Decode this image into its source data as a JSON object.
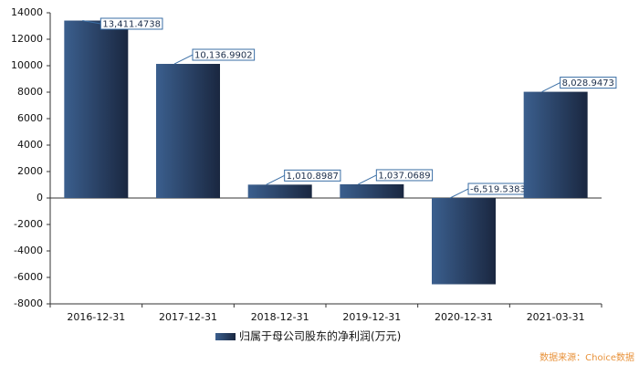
{
  "chart_data": {
    "type": "bar",
    "categories": [
      "2016-12-31",
      "2017-12-31",
      "2018-12-31",
      "2019-12-31",
      "2020-12-31",
      "2021-03-31"
    ],
    "series": [
      {
        "name": "归属于母公司股东的净利润(万元)",
        "color": "#3b5f8e",
        "values": [
          13411.4738,
          10136.9902,
          1010.8987,
          1037.0689,
          -6519.5383,
          8028.9473
        ],
        "value_labels": [
          "13,411.4738",
          "10,136.9902",
          "1,010.8987",
          "1,037.0689",
          "-6,519.5383",
          "8,028.9473"
        ]
      }
    ],
    "ylim": [
      -8000,
      14000
    ],
    "yticks": [
      -8000,
      -6000,
      -4000,
      -2000,
      0,
      2000,
      4000,
      6000,
      8000,
      10000,
      12000,
      14000
    ],
    "legend": "bottom",
    "source": "数据来源：Choice数据"
  }
}
